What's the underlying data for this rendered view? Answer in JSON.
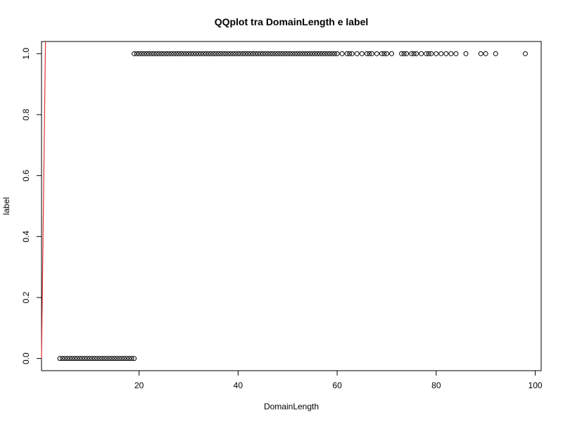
{
  "chart_data": {
    "type": "scatter",
    "title": "QQplot tra DomainLength e label",
    "xlabel": "DomainLength",
    "ylabel": "label",
    "xlim": [
      0.3,
      101.2
    ],
    "ylim": [
      -0.04,
      1.04
    ],
    "x_ticks": [
      20,
      40,
      60,
      80,
      100
    ],
    "y_ticks": [
      0.0,
      0.2,
      0.4,
      0.6,
      0.8,
      1.0
    ],
    "x_tick_labels": [
      "20",
      "40",
      "60",
      "80",
      "100"
    ],
    "y_tick_labels": [
      "0.0",
      "0.2",
      "0.4",
      "0.6",
      "0.8",
      "1.0"
    ],
    "grid": false,
    "point_color": "#000000",
    "line_color": "#e03030",
    "series": [
      {
        "label_value": 0,
        "x": [
          4,
          4.5,
          5,
          5.5,
          6,
          6.5,
          7,
          7.5,
          8,
          8.5,
          9,
          9.5,
          10,
          10.5,
          11,
          11.5,
          12,
          12.5,
          13,
          13.5,
          14,
          14.5,
          15,
          15.5,
          16,
          16.5,
          17,
          17.5,
          18,
          18.5,
          19
        ],
        "y": 0
      },
      {
        "label_value": 1,
        "x": [
          19,
          19.5,
          20,
          20.5,
          21,
          21.5,
          22,
          22.5,
          23,
          23.5,
          24,
          24.5,
          25,
          25.5,
          26,
          26.5,
          27,
          27.5,
          28,
          28.5,
          29,
          29.5,
          30,
          30.5,
          31,
          31.5,
          32,
          32.5,
          33,
          33.5,
          34,
          34.5,
          35,
          35.5,
          36,
          36.5,
          37,
          37.5,
          38,
          38.5,
          39,
          39.5,
          40,
          40.5,
          41,
          41.5,
          42,
          42.5,
          43,
          43.5,
          44,
          44.5,
          45,
          45.5,
          46,
          46.5,
          47,
          47.5,
          48,
          48.5,
          49,
          49.5,
          50,
          50.5,
          51,
          51.5,
          52,
          52.5,
          53,
          53.5,
          54,
          54.5,
          55,
          55.5,
          56,
          56.5,
          57,
          57.5,
          58,
          58.5,
          59,
          59.5,
          60,
          61,
          62,
          62.5,
          63,
          64,
          65,
          66,
          66.5,
          67,
          68,
          69,
          69.5,
          70,
          71,
          73,
          73.5,
          74,
          75,
          75.5,
          76,
          77,
          78,
          78.5,
          79,
          80,
          81,
          82,
          83,
          84,
          86,
          89,
          90,
          92,
          98
        ],
        "y": 1
      }
    ],
    "reference_line": {
      "x": [
        0.3,
        1.1
      ],
      "y": [
        0.0,
        1.04
      ]
    }
  }
}
